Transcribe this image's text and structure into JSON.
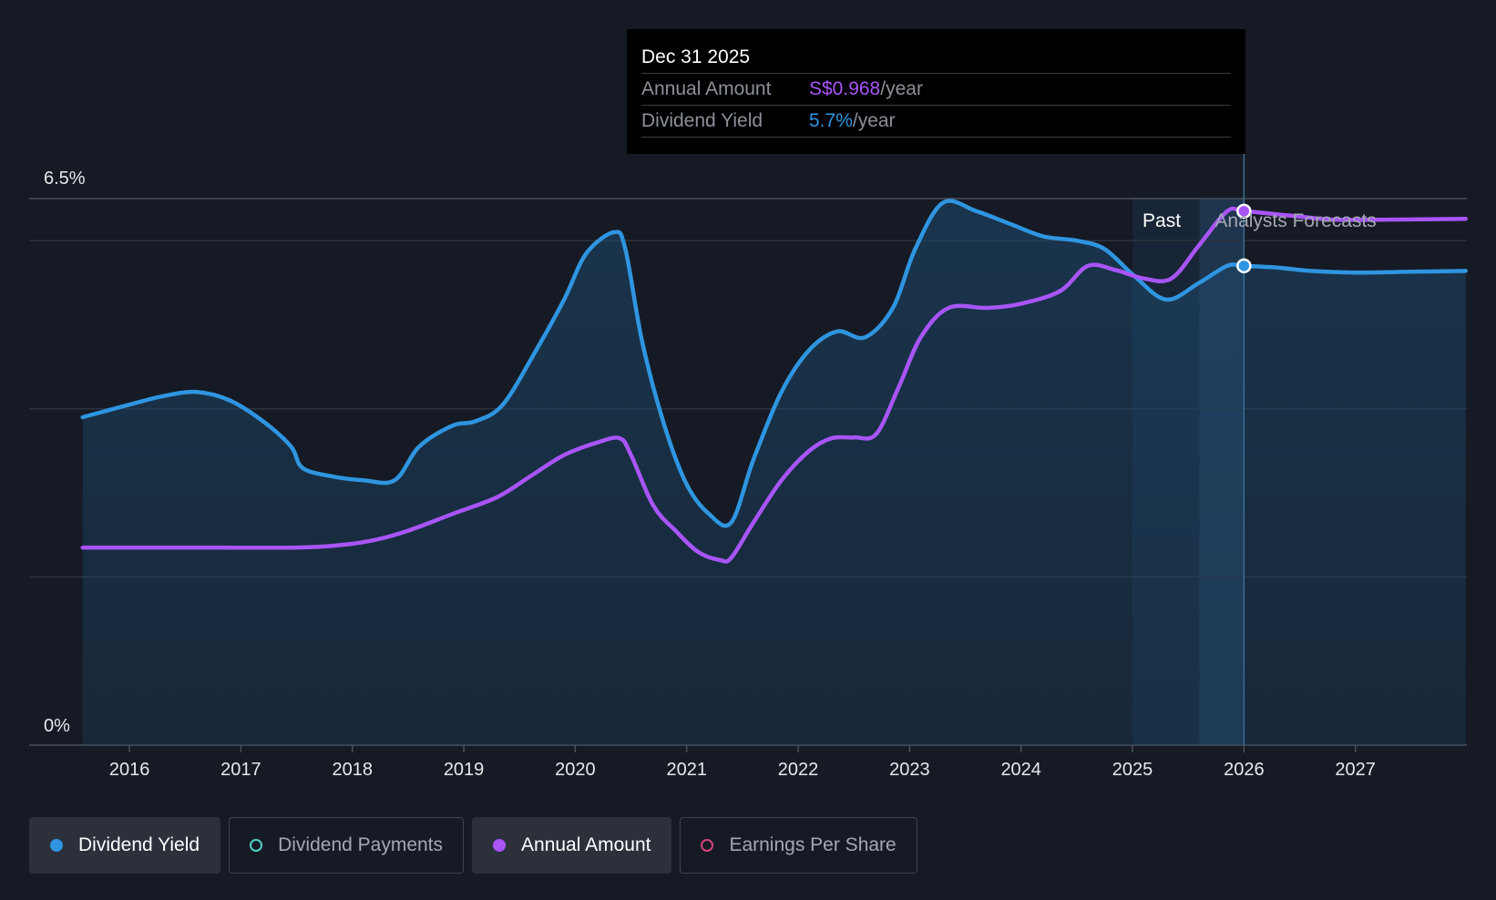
{
  "chart_data": {
    "type": "area",
    "title": "",
    "y_axis": {
      "min_label": "0%",
      "max_label": "6.5%",
      "ylim": [
        0,
        6.5
      ]
    },
    "x_ticks": [
      "2016",
      "2017",
      "2018",
      "2019",
      "2020",
      "2021",
      "2022",
      "2023",
      "2024",
      "2025",
      "2026",
      "2027"
    ],
    "regions": {
      "past_label": "Past",
      "forecast_label": "Analysts Forecasts"
    },
    "series": [
      {
        "name": "Dividend Yield",
        "color": "#2f95e0",
        "unit": "%",
        "points": [
          [
            2015.58,
            3.9
          ],
          [
            2016.0,
            4.05
          ],
          [
            2016.3,
            4.15
          ],
          [
            2016.6,
            4.2
          ],
          [
            2016.9,
            4.1
          ],
          [
            2017.2,
            3.85
          ],
          [
            2017.45,
            3.55
          ],
          [
            2017.55,
            3.3
          ],
          [
            2017.8,
            3.2
          ],
          [
            2018.1,
            3.15
          ],
          [
            2018.38,
            3.15
          ],
          [
            2018.6,
            3.55
          ],
          [
            2018.9,
            3.8
          ],
          [
            2019.1,
            3.85
          ],
          [
            2019.35,
            4.05
          ],
          [
            2019.65,
            4.7
          ],
          [
            2019.9,
            5.3
          ],
          [
            2020.1,
            5.85
          ],
          [
            2020.35,
            6.1
          ],
          [
            2020.45,
            5.9
          ],
          [
            2020.6,
            4.8
          ],
          [
            2020.8,
            3.8
          ],
          [
            2021.0,
            3.1
          ],
          [
            2021.2,
            2.75
          ],
          [
            2021.4,
            2.65
          ],
          [
            2021.6,
            3.4
          ],
          [
            2021.85,
            4.2
          ],
          [
            2022.1,
            4.7
          ],
          [
            2022.35,
            4.92
          ],
          [
            2022.6,
            4.85
          ],
          [
            2022.85,
            5.2
          ],
          [
            2023.05,
            5.9
          ],
          [
            2023.3,
            6.45
          ],
          [
            2023.6,
            6.35
          ],
          [
            2023.9,
            6.2
          ],
          [
            2024.2,
            6.05
          ],
          [
            2024.5,
            6.0
          ],
          [
            2024.75,
            5.9
          ],
          [
            2025.0,
            5.6
          ],
          [
            2025.3,
            5.3
          ],
          [
            2025.6,
            5.5
          ],
          [
            2025.85,
            5.7
          ],
          [
            2026.0,
            5.7
          ],
          [
            2026.3,
            5.68
          ],
          [
            2026.6,
            5.64
          ],
          [
            2027.0,
            5.62
          ],
          [
            2027.5,
            5.63
          ],
          [
            2027.99,
            5.64
          ]
        ]
      },
      {
        "name": "Annual Amount",
        "color": "#a855f7",
        "unit": "S$/year",
        "points": [
          [
            2015.58,
            2.35
          ],
          [
            2016.5,
            2.35
          ],
          [
            2017.5,
            2.35
          ],
          [
            2017.9,
            2.38
          ],
          [
            2018.2,
            2.44
          ],
          [
            2018.5,
            2.55
          ],
          [
            2018.9,
            2.75
          ],
          [
            2019.3,
            2.95
          ],
          [
            2019.6,
            3.2
          ],
          [
            2019.9,
            3.45
          ],
          [
            2020.2,
            3.6
          ],
          [
            2020.4,
            3.65
          ],
          [
            2020.5,
            3.45
          ],
          [
            2020.7,
            2.85
          ],
          [
            2020.9,
            2.55
          ],
          [
            2021.1,
            2.3
          ],
          [
            2021.3,
            2.2
          ],
          [
            2021.4,
            2.23
          ],
          [
            2021.6,
            2.65
          ],
          [
            2021.85,
            3.15
          ],
          [
            2022.1,
            3.5
          ],
          [
            2022.3,
            3.65
          ],
          [
            2022.5,
            3.66
          ],
          [
            2022.7,
            3.7
          ],
          [
            2022.9,
            4.25
          ],
          [
            2023.1,
            4.85
          ],
          [
            2023.35,
            5.2
          ],
          [
            2023.7,
            5.2
          ],
          [
            2024.0,
            5.25
          ],
          [
            2024.35,
            5.4
          ],
          [
            2024.6,
            5.7
          ],
          [
            2024.85,
            5.65
          ],
          [
            2025.1,
            5.55
          ],
          [
            2025.35,
            5.55
          ],
          [
            2025.6,
            5.95
          ],
          [
            2025.85,
            6.35
          ],
          [
            2026.0,
            6.35
          ],
          [
            2026.4,
            6.3
          ],
          [
            2026.8,
            6.25
          ],
          [
            2027.3,
            6.25
          ],
          [
            2027.99,
            6.26
          ]
        ]
      }
    ],
    "highlighted": {
      "x": 2026.0,
      "yield": 5.7,
      "amount": 6.35
    }
  },
  "tooltip": {
    "date": "Dec 31 2025",
    "rows": [
      {
        "label": "Annual Amount",
        "value": "S$0.968",
        "unit": "/year"
      },
      {
        "label": "Dividend Yield",
        "value": "5.7%",
        "unit": "/year"
      }
    ]
  },
  "legend": [
    {
      "label": "Dividend Yield",
      "color": "#2f95e0",
      "active": true
    },
    {
      "label": "Dividend Payments",
      "color": "#4fd1c5",
      "active": false
    },
    {
      "label": "Annual Amount",
      "color": "#a855f7",
      "active": true
    },
    {
      "label": "Earnings Per Share",
      "color": "#d6447a",
      "active": false
    }
  ]
}
